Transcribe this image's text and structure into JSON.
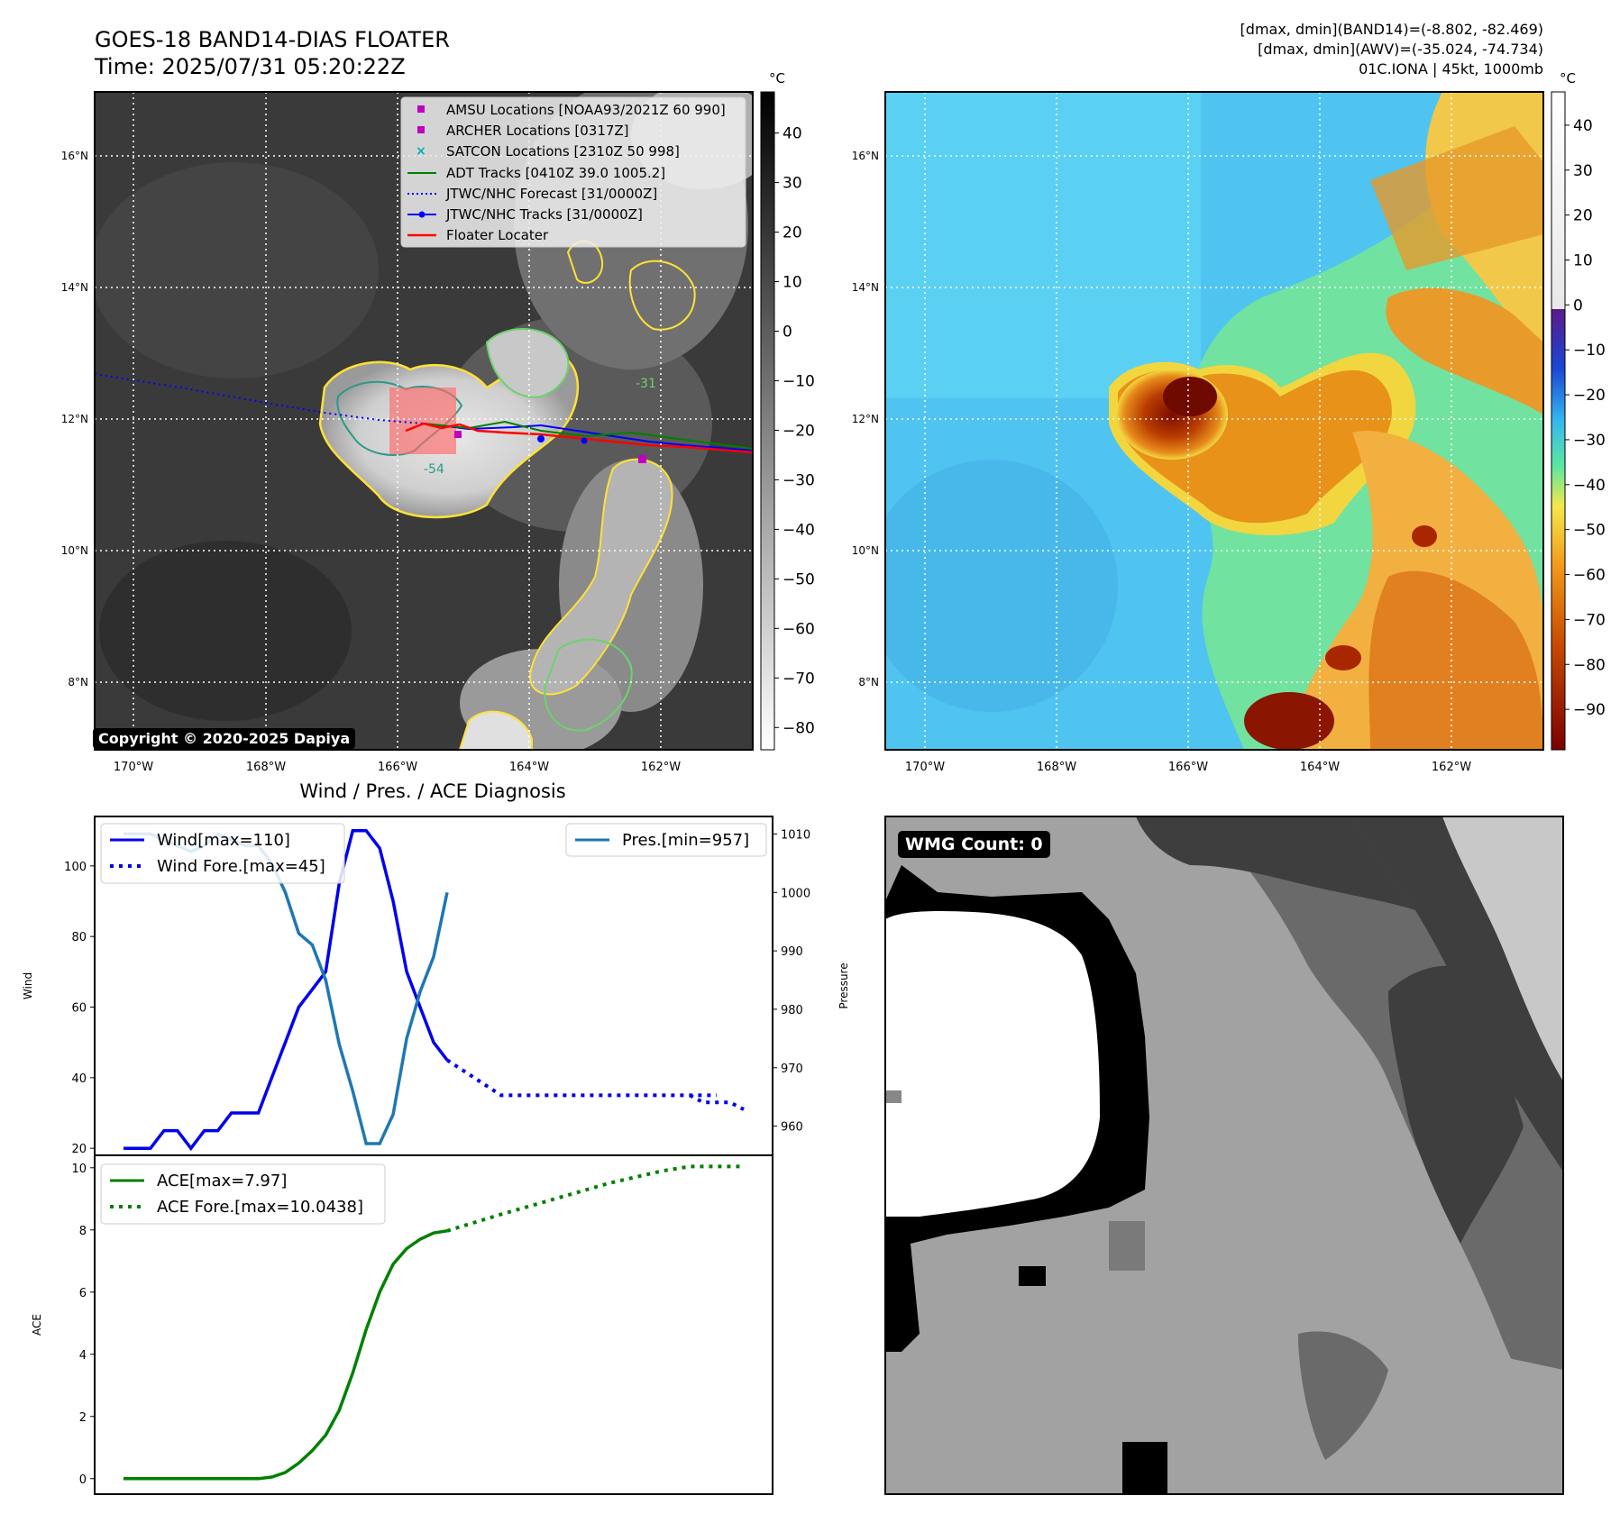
{
  "header": {
    "title_line1": "GOES-18 BAND14-DIAS FLOATER",
    "title_line2": "Time: 2025/07/31 05:20:22Z",
    "info_line1": "[dmax, dmin](BAND14)=(-8.802, -82.469)",
    "info_line2": "[dmax, dmin](AWV)=(-35.024, -74.734)",
    "info_line3": "01C.IONA | 45kt, 1000mb"
  },
  "map": {
    "lon_ticks": [
      "170°W",
      "168°W",
      "166°W",
      "164°W",
      "162°W"
    ],
    "lat_ticks": [
      "16°N",
      "14°N",
      "12°N",
      "10°N",
      "8°N"
    ],
    "colorbar_unit": "°C",
    "colorbar1_ticks": [
      "40",
      "30",
      "20",
      "10",
      "0",
      "−10",
      "−20",
      "−30",
      "−40",
      "−50",
      "−60",
      "−70",
      "−80"
    ],
    "colorbar2_ticks": [
      "40",
      "30",
      "20",
      "10",
      "0",
      "−10",
      "−20",
      "−30",
      "−40",
      "−50",
      "−60",
      "−70",
      "−80",
      "−90"
    ],
    "contour_labels": [
      "-54",
      "-31"
    ],
    "legend": [
      {
        "label": "AMSU Locations [NOAA93/2021Z 60 990]",
        "color": "#c000c0",
        "marker": "square"
      },
      {
        "label": "ARCHER Locations [0317Z]",
        "color": "#c000c0",
        "marker": "square"
      },
      {
        "label": "SATCON Locations [2310Z 50 998]",
        "color": "#00b0b0",
        "marker": "x"
      },
      {
        "label": "ADT Tracks [0410Z 39.0 1005.2]",
        "color": "#008000",
        "marker": "line"
      },
      {
        "label": "JTWC/NHC Forecast [31/0000Z]",
        "color": "#0000ff",
        "marker": "dotted"
      },
      {
        "label": "JTWC/NHC Tracks [31/0000Z]",
        "color": "#0000ff",
        "marker": "line-dot"
      },
      {
        "label": "Floater Locater",
        "color": "#ff0000",
        "marker": "line"
      }
    ],
    "copyright": "Copyright © 2020-2025 Dapiya"
  },
  "wmg": {
    "label": "WMG Count: 0"
  },
  "chart_data": [
    {
      "type": "line",
      "title": "Wind / Pres. / ACE Diagnosis",
      "ylabel": "Wind",
      "ylabel_right": "Pressure",
      "ylim": [
        18,
        114
      ],
      "ylim_right": [
        955,
        1013
      ],
      "yticks": [
        20,
        40,
        60,
        80,
        100
      ],
      "yticks_right": [
        960,
        970,
        980,
        990,
        1000,
        1010
      ],
      "series": [
        {
          "name": "Wind[max=110]",
          "color": "#0000ee",
          "style": "solid",
          "x": [
            0,
            1,
            2,
            3,
            4,
            5,
            6,
            7,
            8,
            9,
            10,
            11,
            12,
            13,
            14,
            15,
            16,
            17,
            18,
            19,
            20,
            21,
            22,
            23,
            24
          ],
          "values": [
            20,
            20,
            20,
            25,
            25,
            20,
            25,
            25,
            30,
            30,
            30,
            40,
            50,
            60,
            65,
            70,
            95,
            110,
            110,
            105,
            90,
            70,
            60,
            50,
            45
          ]
        },
        {
          "name": "Wind Fore.[max=45]",
          "color": "#0000ee",
          "style": "dotted",
          "x": [
            24,
            26,
            28,
            30,
            32,
            34,
            36,
            38,
            40,
            42,
            44
          ],
          "values": [
            45,
            40,
            35,
            35,
            35,
            35,
            35,
            35,
            35,
            35,
            35
          ]
        },
        {
          "name": "Wind Fore.[max=45] (tail)",
          "color": "#0000ee",
          "style": "dotted",
          "x": [
            42,
            43,
            44,
            45,
            46
          ],
          "values": [
            35,
            33,
            33,
            33,
            31
          ]
        },
        {
          "name": "Pres.[min=957]",
          "color": "#1f77b4",
          "style": "solid",
          "axis": "right",
          "x": [
            0,
            1,
            2,
            3,
            4,
            5,
            6,
            7,
            8,
            9,
            10,
            11,
            12,
            13,
            14,
            15,
            16,
            17,
            18,
            19,
            20,
            21,
            22,
            23,
            24
          ],
          "values": [
            1010,
            1010,
            1010,
            1009,
            1008,
            1007,
            1008,
            1010,
            1009,
            1008,
            1008,
            1005,
            1000,
            993,
            991,
            985,
            974,
            966,
            957,
            957,
            962,
            975,
            983,
            989,
            1000
          ]
        }
      ]
    },
    {
      "type": "line",
      "ylabel": "ACE",
      "ylim": [
        -0.5,
        10.4
      ],
      "yticks": [
        0,
        2,
        4,
        6,
        8,
        10
      ],
      "series": [
        {
          "name": "ACE[max=7.97]",
          "color": "#008000",
          "style": "solid",
          "x": [
            0,
            2,
            4,
            6,
            8,
            10,
            11,
            12,
            13,
            14,
            15,
            16,
            17,
            18,
            19,
            20,
            21,
            22,
            23,
            24
          ],
          "values": [
            0,
            0,
            0,
            0,
            0,
            0,
            0.05,
            0.2,
            0.5,
            0.9,
            1.4,
            2.2,
            3.4,
            4.8,
            6.0,
            6.9,
            7.4,
            7.7,
            7.9,
            7.97
          ]
        },
        {
          "name": "ACE Fore.[max=10.0438]",
          "color": "#008000",
          "style": "dotted",
          "x": [
            24,
            28,
            32,
            36,
            40,
            42,
            44,
            46
          ],
          "values": [
            7.97,
            8.5,
            9.0,
            9.5,
            9.9,
            10.04,
            10.04,
            10.04
          ]
        }
      ]
    }
  ]
}
